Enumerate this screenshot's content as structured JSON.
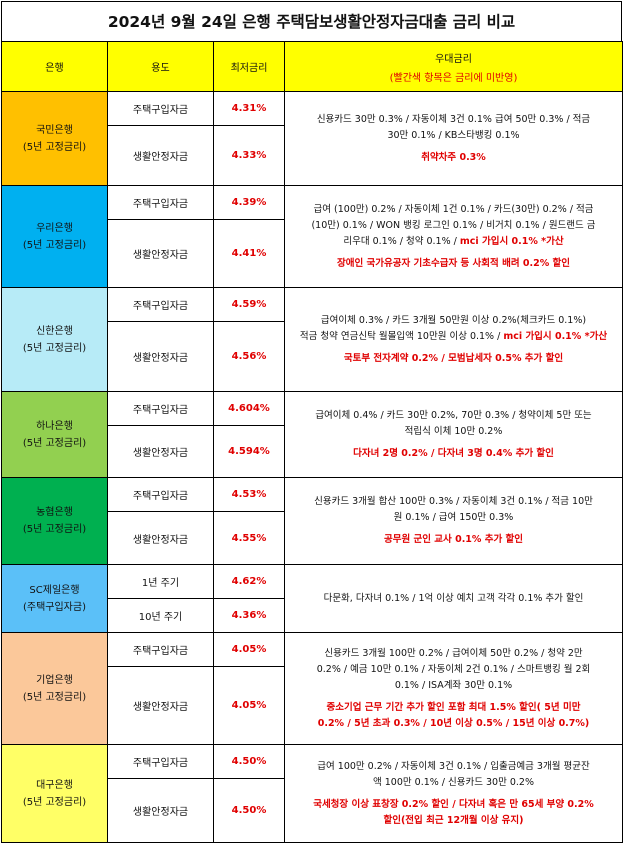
{
  "title": "2024년 9월 24일 은행 주택담보생활안정자금대출 금리 비교",
  "header": {
    "bank": "은행",
    "usage": "용도",
    "rate": "최저금리",
    "benefit": "우대금리",
    "benefit_note": "(빨간색 항목은 금리에 미반영)"
  },
  "colors": {
    "kb": "#ffc000",
    "woori": "#00b0f0",
    "shinhan": "#b7ebf7",
    "hana": "#92d050",
    "nh": "#00b050",
    "sc": "#5bc0f8",
    "ibk": "#fbc89a",
    "dgb": "#ffff66"
  },
  "banks": [
    {
      "name": "국민은행",
      "type": "(5년 고정금리)",
      "rows": [
        {
          "usage": "주택구입자금",
          "rate": "4.31%"
        },
        {
          "usage": "생활안정자금",
          "rate": "4.33%"
        }
      ],
      "benefit_lines": [
        "신용카드 30만 0.3% / 자동이체 3건 0.1% 급여 50만 0.3% / 적금",
        "30만 0.1% / KB스타뱅킹 0.1%"
      ],
      "benefit_tail": "",
      "benefit_red": [
        "취약차주 0.3%"
      ]
    },
    {
      "name": "우리은행",
      "type": "(5년 고정금리)",
      "rows": [
        {
          "usage": "주택구입자금",
          "rate": "4.39%"
        },
        {
          "usage": "생활안정자금",
          "rate": "4.41%"
        }
      ],
      "benefit_lines": [
        "급여 (100만) 0.2% / 자동이체 1건 0.1% / 카드(30만) 0.2% / 적금",
        "(10만) 0.1% / WON 뱅킹 로그인 0.1% / 비거치 0.1% / 원드랜드 금",
        "리우대 0.1% / 청약 0.1% /"
      ],
      "benefit_tail": "mci 가입시 0.1% *가산",
      "benefit_red": [
        "장애인 국가유공자 기초수급자 등 사회적 배려 0.2% 할인"
      ]
    },
    {
      "name": "신한은행",
      "type": "(5년 고정금리)",
      "rows": [
        {
          "usage": "주택구입자금",
          "rate": "4.59%"
        },
        {
          "usage": "생활안정자금",
          "rate": "4.56%"
        }
      ],
      "benefit_lines": [
        "급여이체 0.3% / 카드 3개월 50만원 이상 0.2%(체크카드 0.1%)",
        "적금 청약 연금신탁 월몰입액 10만원 이상 0.1% /"
      ],
      "benefit_tail": "mci 가입시 0.1% *가산",
      "benefit_red": [
        "국토부 전자계약 0.2% / 모범납세자 0.5% 추가 할인"
      ]
    },
    {
      "name": "하나은행",
      "type": "(5년 고정금리)",
      "rows": [
        {
          "usage": "주택구입자금",
          "rate": "4.604%"
        },
        {
          "usage": "생활안정자금",
          "rate": "4.594%"
        }
      ],
      "benefit_lines": [
        "급여이체 0.4% / 카드 30만 0.2%, 70만 0.3% / 청약이체 5만 또는",
        "적립식 이체 10만 0.2%"
      ],
      "benefit_tail": "",
      "benefit_red": [
        "다자녀 2명 0.2% / 다자녀 3명 0.4% 추가 할인"
      ]
    },
    {
      "name": "농협은행",
      "type": "(5년 고정금리)",
      "rows": [
        {
          "usage": "주택구입자금",
          "rate": "4.53%"
        },
        {
          "usage": "생활안정자금",
          "rate": "4.55%"
        }
      ],
      "benefit_lines": [
        "신용카드 3개월 합산 100만 0.3% / 자동이체 3건 0.1% / 적금 10만",
        "원 0.1% / 급여 150만 0.3%"
      ],
      "benefit_tail": "",
      "benefit_red": [
        "공무원 군인 교사 0.1% 추가 할인"
      ]
    },
    {
      "name": "SC제일은행",
      "type": "(주택구입자금)",
      "rows": [
        {
          "usage": "1년 주기",
          "rate": "4.62%"
        },
        {
          "usage": "10년 주기",
          "rate": "4.36%"
        }
      ],
      "benefit_lines": [
        "다문화, 다자녀 0.1% / 1억 이상 예치 고객 각각 0.1% 추가 할인"
      ],
      "benefit_tail": "",
      "benefit_red": []
    },
    {
      "name": "기업은행",
      "type": "(5년 고정금리)",
      "rows": [
        {
          "usage": "주택구입자금",
          "rate": "4.05%"
        },
        {
          "usage": "생활안정자금",
          "rate": "4.05%"
        }
      ],
      "benefit_lines": [
        "신용카드 3개월 100만 0.2% / 급여이체 50만 0.2% / 청약 2만",
        "0.2% / 예금 10만 0.1% / 자동이체 2건 0.1% / 스마트뱅킹 월 2회",
        "0.1% / ISA계좌 30만 0.1%"
      ],
      "benefit_tail": "",
      "benefit_red": [
        "중소기업 근무 기간 추가 할인 포함 최대 1.5% 할인( 5년 미만",
        "0.2% / 5년 초과 0.3% / 10년 이상 0.5% / 15년 이상 0.7%)"
      ]
    },
    {
      "name": "대구은행",
      "type": "(5년 고정금리)",
      "rows": [
        {
          "usage": "주택구입자금",
          "rate": "4.50%"
        },
        {
          "usage": "생활안정자금",
          "rate": "4.50%"
        }
      ],
      "benefit_lines": [
        "급여 100만 0.2% / 자동이체 3건 0.1% / 입출금예금 3개월 평균잔",
        "액 100만 0.1% / 신용카드 30만 0.2%"
      ],
      "benefit_tail": "",
      "benefit_red": [
        "국세청장 이상 표창장 0.2% 할인 / 다자녀 혹은 만 65세 부양 0.2%",
        "할인(전입 최근 12개월 이상 유지)"
      ]
    }
  ]
}
